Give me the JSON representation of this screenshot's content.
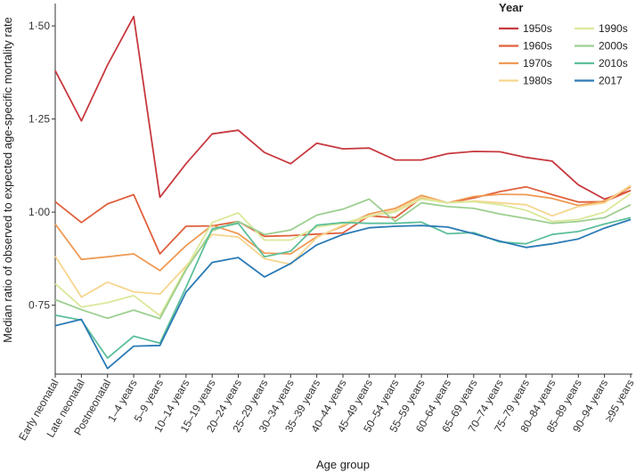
{
  "chart_data": {
    "type": "line",
    "title": "",
    "xlabel": "Age group",
    "ylabel": "Median ratio of observed to expected age-specific mortality rate",
    "ylim": [
      0.565,
      1.56
    ],
    "yticks": [
      0.75,
      1.0,
      1.25,
      1.5
    ],
    "ytick_labels": [
      "0·75",
      "1·00",
      "1·25",
      "1·50"
    ],
    "grid": false,
    "legend_title": "Year",
    "legend_position": "top-right",
    "categories": [
      "Early neonatal",
      "Late neonatal",
      "Postneonatal",
      "1–4 years",
      "5–9 years",
      "10–14 years",
      "15–19 years",
      "20–24 years",
      "25–29 years",
      "30–34 years",
      "35–39 years",
      "40–44 years",
      "45–49 years",
      "50–54 years",
      "55–59 years",
      "60–64 years",
      "65–69 years",
      "70–74 years",
      "75–79 years",
      "80–84 years",
      "85–89 years",
      "90–94 years",
      "≥95 years"
    ],
    "series": [
      {
        "name": "1950s",
        "color": "#c8393f",
        "values": [
          1.38,
          1.245,
          1.395,
          1.525,
          1.04,
          1.13,
          1.21,
          1.22,
          1.16,
          1.13,
          1.185,
          1.17,
          1.172,
          1.14,
          1.14,
          1.157,
          1.163,
          1.162,
          1.147,
          1.137,
          1.073,
          1.035,
          1.058
        ]
      },
      {
        "name": "1960s",
        "color": "#e0603c",
        "values": [
          1.028,
          0.972,
          1.022,
          1.047,
          0.888,
          0.962,
          0.963,
          0.975,
          0.935,
          0.937,
          0.941,
          0.944,
          0.99,
          0.985,
          1.038,
          1.025,
          1.038,
          1.055,
          1.068,
          1.047,
          1.027,
          1.028,
          1.058
        ]
      },
      {
        "name": "1970s",
        "color": "#ef9a55",
        "values": [
          0.968,
          0.873,
          0.88,
          0.888,
          0.843,
          0.91,
          0.965,
          0.942,
          0.89,
          0.888,
          0.934,
          0.962,
          0.995,
          1.01,
          1.045,
          1.025,
          1.042,
          1.048,
          1.047,
          1.037,
          1.018,
          1.03,
          1.067
        ]
      },
      {
        "name": "1980s",
        "color": "#f6d58e",
        "values": [
          0.882,
          0.772,
          0.812,
          0.786,
          0.78,
          0.855,
          0.94,
          0.933,
          0.875,
          0.86,
          0.932,
          0.965,
          0.988,
          1.005,
          1.04,
          1.025,
          1.03,
          1.025,
          1.02,
          0.99,
          1.015,
          1.025,
          1.072
        ]
      },
      {
        "name": "1990s",
        "color": "#dbe89a",
        "values": [
          0.808,
          0.745,
          0.757,
          0.776,
          0.722,
          0.85,
          0.972,
          0.998,
          0.925,
          0.925,
          0.96,
          0.97,
          0.99,
          1.0,
          1.035,
          1.025,
          1.028,
          1.02,
          1.005,
          0.975,
          0.98,
          1.0,
          1.05
        ]
      },
      {
        "name": "2000s",
        "color": "#9ccf90",
        "values": [
          0.765,
          0.738,
          0.715,
          0.737,
          0.714,
          0.845,
          0.95,
          0.975,
          0.94,
          0.952,
          0.992,
          1.008,
          1.035,
          0.975,
          1.025,
          1.015,
          1.01,
          0.995,
          0.983,
          0.97,
          0.975,
          0.985,
          1.02
        ]
      },
      {
        "name": "2010s",
        "color": "#5cbf9a",
        "values": [
          0.723,
          0.71,
          0.608,
          0.667,
          0.648,
          0.798,
          0.955,
          0.97,
          0.88,
          0.895,
          0.965,
          0.972,
          0.97,
          0.97,
          0.973,
          0.942,
          0.945,
          0.92,
          0.915,
          0.94,
          0.948,
          0.968,
          0.985
        ]
      },
      {
        "name": "2017",
        "color": "#2c7bb6",
        "values": [
          0.695,
          0.712,
          0.58,
          0.64,
          0.642,
          0.785,
          0.865,
          0.878,
          0.826,
          0.862,
          0.912,
          0.94,
          0.958,
          0.962,
          0.964,
          0.96,
          0.942,
          0.922,
          0.905,
          0.915,
          0.928,
          0.957,
          0.98
        ]
      }
    ]
  }
}
